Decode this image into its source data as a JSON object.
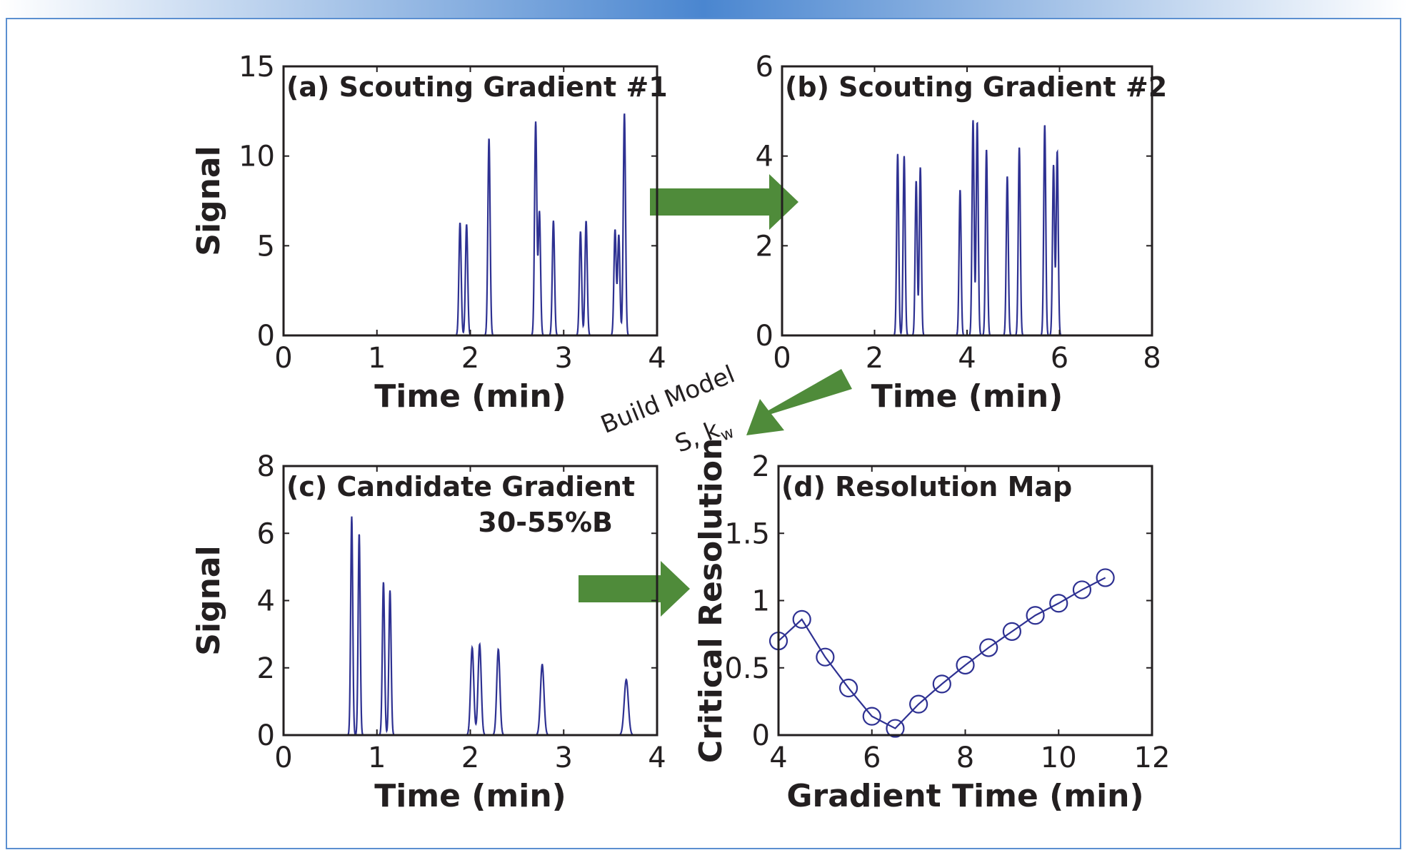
{
  "figure": {
    "arrow_text_line1": "Build Model",
    "arrow_text_line2": "S, k",
    "arrow_text_sub": "w"
  },
  "colors": {
    "trace": "#2e3192",
    "arrow": "#4f8b3a",
    "border": "#5b8fd0",
    "top_bar": "#4a86d0",
    "text": "#231f20"
  },
  "chart_data": [
    {
      "id": "a",
      "type": "line",
      "title": "(a) Scouting Gradient #1",
      "xlabel": "Time (min)",
      "ylabel": "Signal",
      "xlim": [
        0,
        4
      ],
      "ylim": [
        0,
        15
      ],
      "xticks": [
        0,
        1,
        2,
        3,
        4
      ],
      "yticks": [
        0,
        5,
        10,
        15
      ],
      "x_end": 3.75,
      "peaks": [
        {
          "t": 1.89,
          "h": 6.3
        },
        {
          "t": 1.96,
          "h": 6.2
        },
        {
          "t": 2.2,
          "h": 11.0
        },
        {
          "t": 2.7,
          "h": 11.9
        },
        {
          "t": 2.74,
          "h": 6.9
        },
        {
          "t": 2.89,
          "h": 6.4
        },
        {
          "t": 3.18,
          "h": 5.8
        },
        {
          "t": 3.24,
          "h": 6.4
        },
        {
          "t": 3.55,
          "h": 5.9
        },
        {
          "t": 3.59,
          "h": 5.6
        },
        {
          "t": 3.65,
          "h": 12.4
        }
      ],
      "peak_width": 0.012
    },
    {
      "id": "b",
      "type": "line",
      "title": "(b) Scouting Gradient #2",
      "xlabel": "Time (min)",
      "ylabel": "",
      "xlim": [
        0,
        8
      ],
      "ylim": [
        0,
        6
      ],
      "xticks": [
        0,
        2,
        4,
        6,
        8
      ],
      "yticks": [
        0,
        2,
        4,
        6
      ],
      "x_end": 6.1,
      "peaks": [
        {
          "t": 2.5,
          "h": 4.05
        },
        {
          "t": 2.64,
          "h": 4.0
        },
        {
          "t": 2.9,
          "h": 3.45
        },
        {
          "t": 2.99,
          "h": 3.75
        },
        {
          "t": 3.85,
          "h": 3.25
        },
        {
          "t": 4.13,
          "h": 4.8
        },
        {
          "t": 4.22,
          "h": 4.75
        },
        {
          "t": 4.42,
          "h": 4.15
        },
        {
          "t": 4.87,
          "h": 3.55
        },
        {
          "t": 5.13,
          "h": 4.2
        },
        {
          "t": 5.68,
          "h": 4.7
        },
        {
          "t": 5.87,
          "h": 3.8
        },
        {
          "t": 5.95,
          "h": 4.1
        }
      ],
      "peak_width": 0.022
    },
    {
      "id": "c",
      "type": "line",
      "title": "(c) Candidate Gradient",
      "subtitle": "30-55%B",
      "xlabel": "Time (min)",
      "ylabel": "Signal",
      "xlim": [
        0,
        4
      ],
      "ylim": [
        0,
        8
      ],
      "xticks": [
        0,
        1,
        2,
        3,
        4
      ],
      "yticks": [
        0,
        2,
        4,
        6,
        8
      ],
      "x_end": 3.8,
      "peaks": [
        {
          "t": 0.73,
          "h": 6.5,
          "w": 0.011
        },
        {
          "t": 0.81,
          "h": 6.0,
          "w": 0.011
        },
        {
          "t": 1.07,
          "h": 4.55,
          "w": 0.012
        },
        {
          "t": 1.14,
          "h": 4.3,
          "w": 0.012
        },
        {
          "t": 2.02,
          "h": 2.6,
          "w": 0.017
        },
        {
          "t": 2.1,
          "h": 2.7,
          "w": 0.017
        },
        {
          "t": 2.3,
          "h": 2.55,
          "w": 0.017
        },
        {
          "t": 2.77,
          "h": 2.1,
          "w": 0.019
        },
        {
          "t": 3.67,
          "h": 1.65,
          "w": 0.022
        }
      ]
    },
    {
      "id": "d",
      "type": "line",
      "title": "(d) Resolution Map",
      "xlabel": "Gradient Time (min)",
      "ylabel": "Critical Resolution",
      "xlim": [
        4,
        12
      ],
      "ylim": [
        0,
        2
      ],
      "xticks": [
        4,
        6,
        8,
        10,
        12
      ],
      "yticks": [
        0,
        0.5,
        1,
        1.5,
        2
      ],
      "ytick_labels": [
        "0",
        "0.5",
        "1",
        "1.5",
        "2"
      ],
      "x": [
        4.0,
        4.5,
        5.0,
        5.5,
        6.0,
        6.5,
        7.0,
        7.5,
        8.0,
        8.5,
        9.0,
        9.5,
        10.0,
        10.5,
        11.0
      ],
      "y": [
        0.7,
        0.86,
        0.58,
        0.35,
        0.14,
        0.05,
        0.23,
        0.38,
        0.52,
        0.65,
        0.77,
        0.89,
        0.98,
        1.08,
        1.17
      ],
      "marker": "circle"
    }
  ]
}
